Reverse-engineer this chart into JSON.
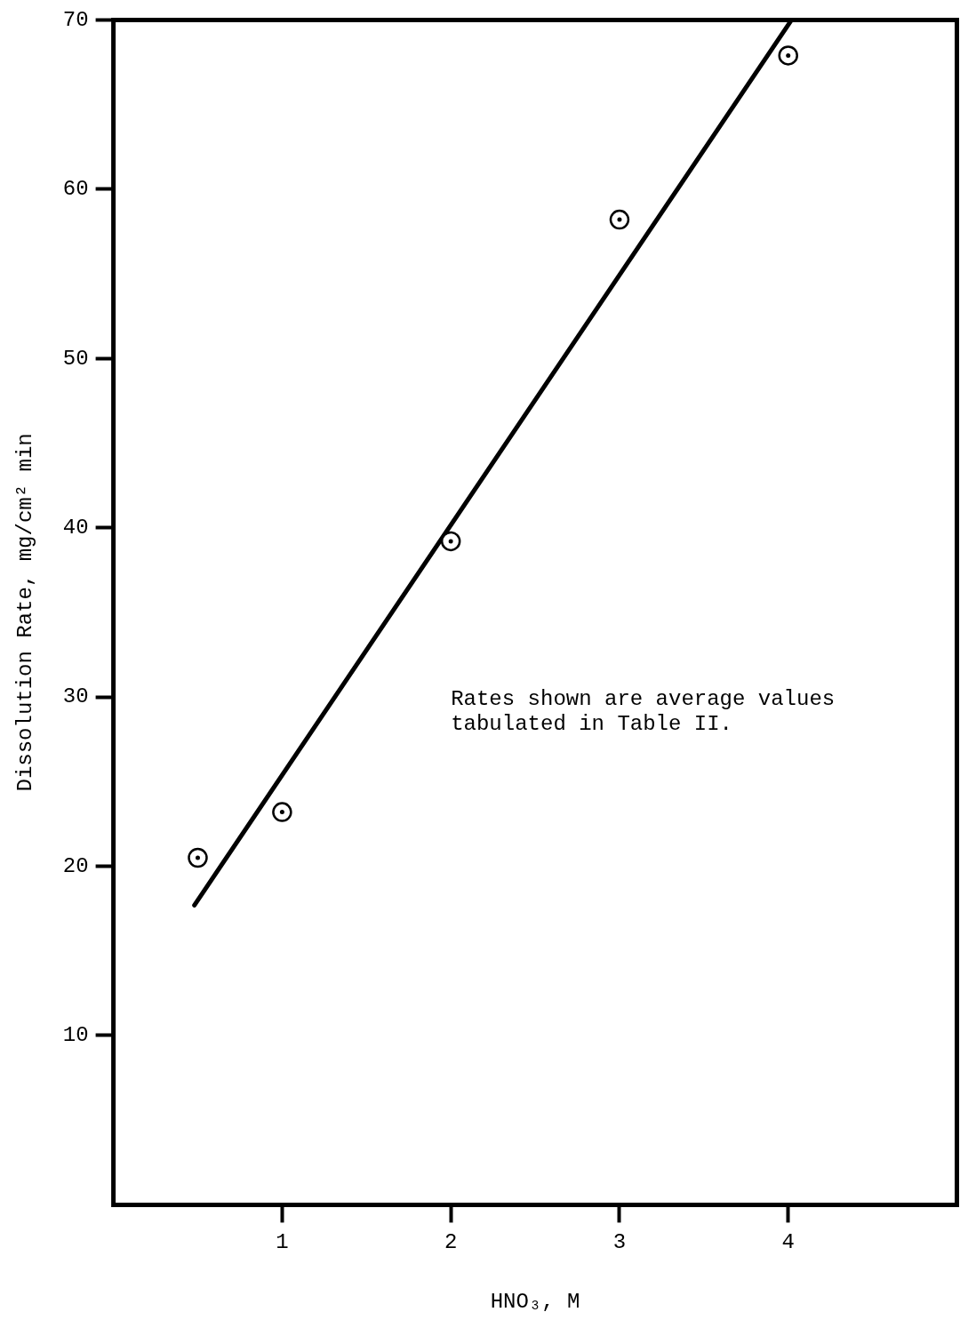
{
  "chart_data": {
    "type": "scatter",
    "xlabel": "HNO₃, M",
    "ylabel": "Dissolution Rate, mg/cm² min",
    "xlim": [
      0,
      5
    ],
    "ylim": [
      0,
      70
    ],
    "xticks": [
      1,
      2,
      3,
      4
    ],
    "yticks": [
      10,
      20,
      30,
      40,
      50,
      60,
      70
    ],
    "grid": false,
    "legend": false,
    "annotations": [
      "Rates shown are average values\ntabulated in Table II."
    ],
    "series": [
      {
        "type": "scatter",
        "marker": "circle",
        "color": "#000000",
        "x": [
          0.5,
          1,
          2,
          3,
          4
        ],
        "values": [
          20.5,
          23.2,
          39.2,
          58.2,
          67.9
        ]
      },
      {
        "type": "line",
        "marker": "none",
        "color": "#000000",
        "x": [
          0.48,
          4.02
        ],
        "values": [
          17.7,
          70
        ]
      }
    ]
  }
}
